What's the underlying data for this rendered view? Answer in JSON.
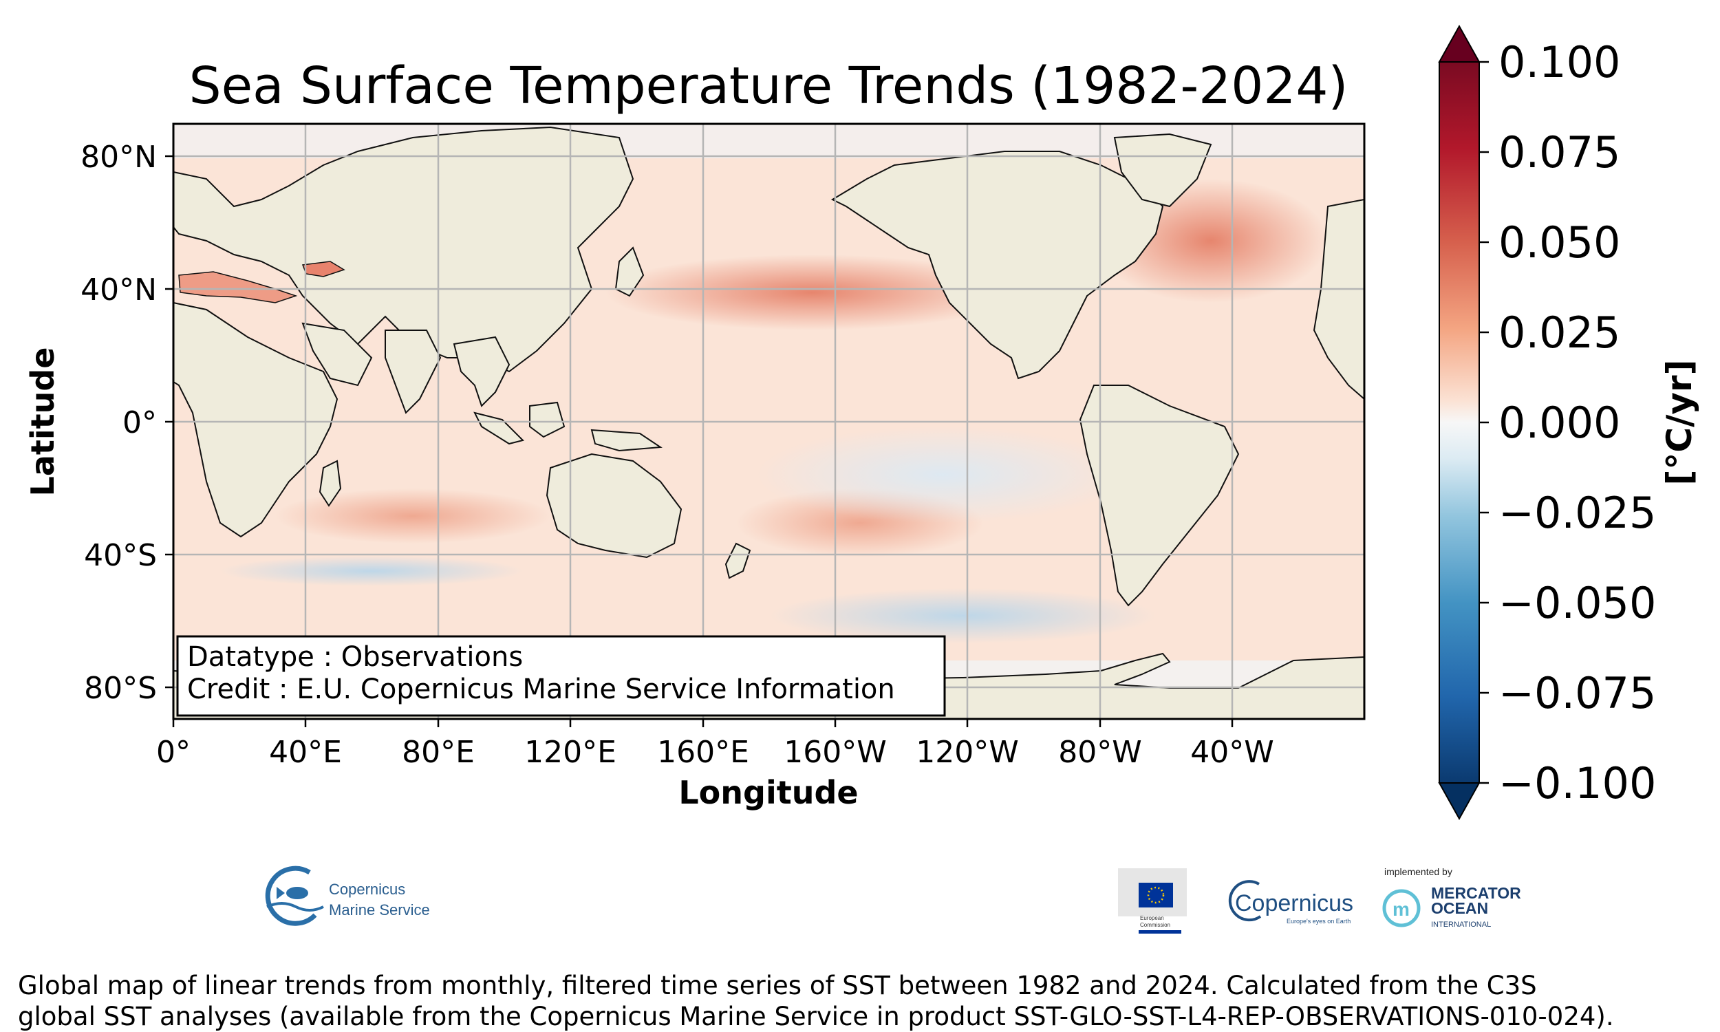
{
  "title": "Sea Surface Temperature Trends (1982-2024)",
  "x_axis": {
    "label": "Longitude",
    "ticks": [
      "0°",
      "40°E",
      "80°E",
      "120°E",
      "160°E",
      "160°W",
      "120°W",
      "80°W",
      "40°W"
    ]
  },
  "y_axis": {
    "label": "Latitude",
    "ticks": [
      "80°N",
      "40°N",
      "0°",
      "40°S",
      "80°S"
    ]
  },
  "colorbar": {
    "label": "[°C/yr]",
    "ticks": [
      "0.100",
      "0.075",
      "0.050",
      "0.025",
      "0.000",
      "−0.025",
      "−0.050",
      "−0.075",
      "−0.100"
    ],
    "min": -0.1,
    "max": 0.1,
    "colormap": "RdBu_r",
    "colors": {
      "warm_max": "#67001f",
      "warm": "#d6604d",
      "neutral": "#f7f7f7",
      "cool": "#4393c3",
      "cool_max": "#053061"
    }
  },
  "info_box": {
    "line1": "Datatype : Observations",
    "line2": "Credit : E.U. Copernicus Marine Service Information"
  },
  "logos": {
    "copernicus_marine": [
      "Copernicus",
      "Marine Service"
    ],
    "european_commission": [
      "European",
      "Commission"
    ],
    "copernicus": "Copernicus",
    "copernicus_tagline": "Europe's eyes on Earth",
    "mercator_implemented": "implemented by",
    "mercator": [
      "MERCATOR",
      "OCEAN",
      "INTERNATIONAL"
    ]
  },
  "caption": {
    "line1": "Global map of linear trends from monthly, filtered time series of SST between 1982 and 2024. Calculated from the C3S",
    "line2": "global SST analyses (available from the Copernicus Marine Service in product SST-GLO-SST-L4-REP-OBSERVATIONS-010-024)."
  },
  "map_colors": {
    "land": "#efecdc",
    "ocean_base": "#fbe3d6",
    "grid": "#b0b0b0"
  }
}
